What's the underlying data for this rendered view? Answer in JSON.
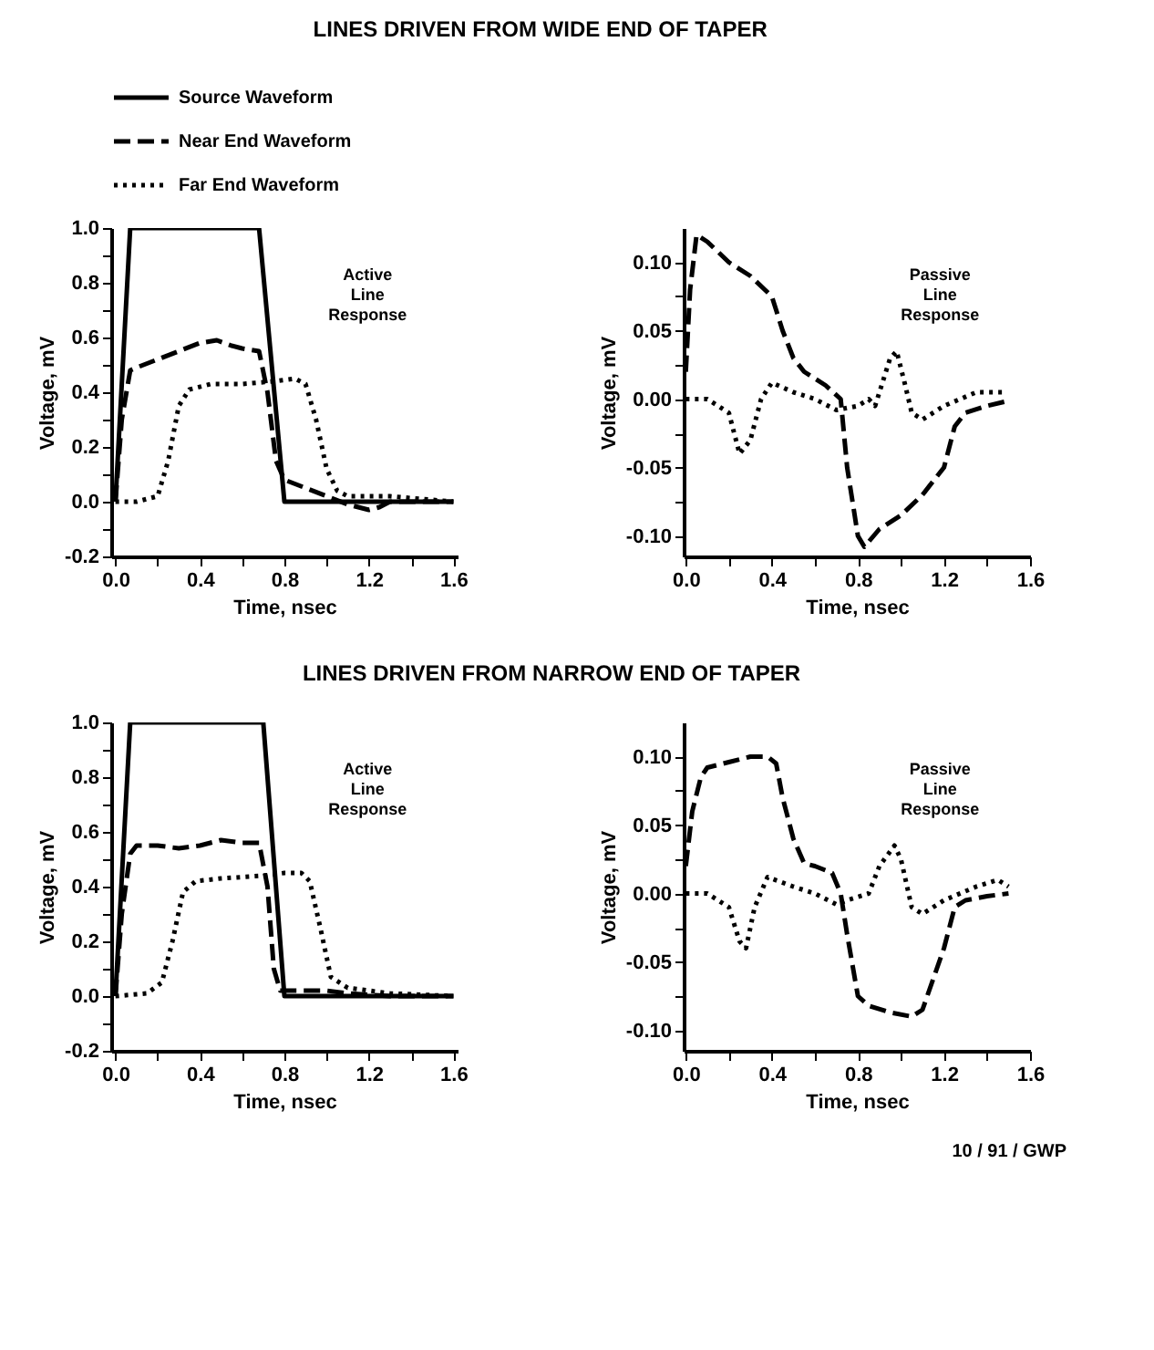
{
  "chart_data": [
    {
      "type": "line",
      "title": "LINES DRIVEN FROM WIDE END OF TAPER",
      "xlabel": "Time, nsec",
      "ylabel": "Voltage, mV",
      "legend": "top",
      "marker": "none",
      "grid": false,
      "xlim": [
        -0.02,
        1.62
      ],
      "ylim": [
        -0.2,
        1.0
      ],
      "xticks": [
        {
          "value": 0,
          "label": "0.0"
        },
        {
          "value": 0.2,
          "label": null
        },
        0.4,
        {
          "value": 0.6,
          "label": null
        },
        0.8,
        {
          "value": 1.0,
          "label": null
        },
        1.2,
        {
          "value": 1.4,
          "label": null
        },
        1.6
      ],
      "yticks": [
        -0.2,
        {
          "value": -0.1,
          "label": null
        },
        {
          "value": 0,
          "label": "0.0"
        },
        {
          "value": 0.1,
          "label": null
        },
        0.2,
        {
          "value": 0.3,
          "label": null
        },
        0.4,
        {
          "value": 0.5,
          "label": null
        },
        0.6,
        {
          "value": 0.7,
          "label": null
        },
        0.8,
        {
          "value": 0.9,
          "label": null
        },
        {
          "value": 1.0,
          "label": "1.0"
        }
      ],
      "annotations": [
        "Active\nLine\nResponse"
      ],
      "series": [
        {
          "name": "Source  Waveform",
          "color": "#000000",
          "line_style": "solid",
          "x": [
            0,
            0.07,
            0.68,
            0.8,
            1.6
          ],
          "values": [
            0,
            1,
            1,
            0,
            0
          ]
        },
        {
          "name": "Near End  Waveform",
          "color": "#000000",
          "line_style": "dashed",
          "x": [
            0,
            0.03,
            0.07,
            0.1,
            0.2,
            0.3,
            0.4,
            0.48,
            0.55,
            0.6,
            0.68,
            0.72,
            0.76,
            0.8,
            0.9,
            1.0,
            1.1,
            1.2,
            1.25,
            1.3,
            1.6
          ],
          "values": [
            0,
            0.3,
            0.48,
            0.49,
            0.52,
            0.55,
            0.58,
            0.59,
            0.57,
            0.56,
            0.55,
            0.4,
            0.15,
            0.08,
            0.05,
            0.02,
            -0.01,
            -0.03,
            -0.02,
            0,
            0
          ]
        },
        {
          "name": "Far End  Waveform",
          "color": "#000000",
          "line_style": "dotted",
          "x": [
            0,
            0.1,
            0.2,
            0.25,
            0.3,
            0.35,
            0.45,
            0.6,
            0.75,
            0.85,
            0.9,
            0.95,
            1.0,
            1.05,
            1.1,
            1.3,
            1.6
          ],
          "values": [
            0,
            0,
            0.02,
            0.15,
            0.35,
            0.41,
            0.43,
            0.43,
            0.44,
            0.45,
            0.43,
            0.3,
            0.12,
            0.04,
            0.02,
            0.02,
            0
          ]
        }
      ]
    },
    {
      "type": "line",
      "xlabel": "Time, nsec",
      "ylabel": "Voltage, mV",
      "marker": "none",
      "grid": false,
      "xlim": [
        -0.01,
        1.6
      ],
      "ylim": [
        -0.115,
        0.125
      ],
      "xticks": [
        {
          "value": 0,
          "label": "0.0"
        },
        {
          "value": 0.2,
          "label": null
        },
        0.4,
        {
          "value": 0.6,
          "label": null
        },
        0.8,
        {
          "value": 1.0,
          "label": null
        },
        1.2,
        {
          "value": 1.4,
          "label": null
        },
        1.6
      ],
      "yticks": [
        {
          "value": -0.1,
          "label": "-0.10"
        },
        {
          "value": -0.075,
          "label": null
        },
        -0.05,
        {
          "value": -0.025,
          "label": null
        },
        {
          "value": 0,
          "label": "0.00"
        },
        {
          "value": 0.025,
          "label": null
        },
        0.05,
        {
          "value": 0.075,
          "label": null
        },
        {
          "value": 0.1,
          "label": "0.10"
        }
      ],
      "annotations": [
        "Passive\nLine\nResponse"
      ],
      "series": [
        {
          "color": "#000000",
          "line_style": "dashed",
          "x": [
            0,
            0.02,
            0.05,
            0.1,
            0.2,
            0.3,
            0.4,
            0.45,
            0.5,
            0.55,
            0.6,
            0.65,
            0.72,
            0.75,
            0.8,
            0.83,
            0.9,
            1.0,
            1.1,
            1.2,
            1.25,
            1.3,
            1.4,
            1.48
          ],
          "values": [
            0.02,
            0.08,
            0.12,
            0.115,
            0.1,
            0.09,
            0.075,
            0.05,
            0.03,
            0.02,
            0.015,
            0.01,
            0,
            -0.05,
            -0.1,
            -0.108,
            -0.095,
            -0.085,
            -0.07,
            -0.05,
            -0.02,
            -0.01,
            -0.005,
            -0.002
          ]
        },
        {
          "color": "#000000",
          "line_style": "dotted",
          "x": [
            0,
            0.1,
            0.15,
            0.2,
            0.25,
            0.3,
            0.35,
            0.4,
            0.5,
            0.6,
            0.7,
            0.8,
            0.85,
            0.88,
            0.95,
            0.98,
            1.02,
            1.05,
            1.1,
            1.2,
            1.35,
            1.48
          ],
          "values": [
            0,
            0,
            -0.005,
            -0.01,
            -0.04,
            -0.03,
            0,
            0.012,
            0.005,
            0,
            -0.008,
            -0.005,
            0,
            -0.005,
            0.03,
            0.035,
            0.01,
            -0.01,
            -0.015,
            -0.005,
            0.005,
            0.005
          ]
        }
      ]
    },
    {
      "type": "line",
      "title": "LINES DRIVEN FROM NARROW END OF TAPER",
      "xlabel": "Time, nsec",
      "ylabel": "Voltage, mV",
      "marker": "none",
      "grid": false,
      "xlim": [
        -0.02,
        1.62
      ],
      "ylim": [
        -0.2,
        1.0
      ],
      "xticks": [
        {
          "value": 0,
          "label": "0.0"
        },
        {
          "value": 0.2,
          "label": null
        },
        0.4,
        {
          "value": 0.6,
          "label": null
        },
        0.8,
        {
          "value": 1.0,
          "label": null
        },
        1.2,
        {
          "value": 1.4,
          "label": null
        },
        1.6
      ],
      "yticks": [
        -0.2,
        {
          "value": -0.1,
          "label": null
        },
        {
          "value": 0,
          "label": "0.0"
        },
        {
          "value": 0.1,
          "label": null
        },
        0.2,
        {
          "value": 0.3,
          "label": null
        },
        0.4,
        {
          "value": 0.5,
          "label": null
        },
        0.6,
        {
          "value": 0.7,
          "label": null
        },
        0.8,
        {
          "value": 0.9,
          "label": null
        },
        {
          "value": 1.0,
          "label": "1.0"
        }
      ],
      "annotations": [
        "Active\nLine\nResponse"
      ],
      "series": [
        {
          "color": "#000000",
          "line_style": "solid",
          "x": [
            0,
            0.07,
            0.7,
            0.8,
            1.6
          ],
          "values": [
            0,
            1,
            1,
            0,
            0
          ]
        },
        {
          "color": "#000000",
          "line_style": "dashed",
          "x": [
            0,
            0.03,
            0.07,
            0.1,
            0.2,
            0.3,
            0.4,
            0.5,
            0.6,
            0.68,
            0.72,
            0.75,
            0.78,
            0.9,
            1.0,
            1.1,
            1.3,
            1.6
          ],
          "values": [
            0,
            0.3,
            0.52,
            0.55,
            0.55,
            0.54,
            0.55,
            0.57,
            0.56,
            0.56,
            0.4,
            0.1,
            0.02,
            0.02,
            0.02,
            0.01,
            0,
            0
          ]
        },
        {
          "color": "#000000",
          "line_style": "dotted",
          "x": [
            0,
            0.15,
            0.22,
            0.27,
            0.32,
            0.38,
            0.5,
            0.7,
            0.8,
            0.88,
            0.92,
            0.97,
            1.02,
            1.1,
            1.3,
            1.6
          ],
          "values": [
            0,
            0.01,
            0.05,
            0.2,
            0.38,
            0.42,
            0.43,
            0.44,
            0.45,
            0.45,
            0.42,
            0.25,
            0.07,
            0.03,
            0.01,
            0
          ]
        }
      ]
    },
    {
      "type": "line",
      "xlabel": "Time, nsec",
      "ylabel": "Voltage, mV",
      "marker": "none",
      "grid": false,
      "xlim": [
        -0.01,
        1.6
      ],
      "ylim": [
        -0.115,
        0.125
      ],
      "xticks": [
        {
          "value": 0,
          "label": "0.0"
        },
        {
          "value": 0.2,
          "label": null
        },
        0.4,
        {
          "value": 0.6,
          "label": null
        },
        0.8,
        {
          "value": 1.0,
          "label": null
        },
        1.2,
        {
          "value": 1.4,
          "label": null
        },
        1.6
      ],
      "yticks": [
        {
          "value": -0.1,
          "label": "-0.10"
        },
        {
          "value": -0.075,
          "label": null
        },
        -0.05,
        {
          "value": -0.025,
          "label": null
        },
        {
          "value": 0,
          "label": "0.00"
        },
        {
          "value": 0.025,
          "label": null
        },
        0.05,
        {
          "value": 0.075,
          "label": null
        },
        {
          "value": 0.1,
          "label": "0.10"
        }
      ],
      "annotations": [
        "Passive\nLine\nResponse",
        "10 / 91 / GWP"
      ],
      "series": [
        {
          "color": "#000000",
          "line_style": "dashed",
          "x": [
            0,
            0.03,
            0.07,
            0.1,
            0.2,
            0.3,
            0.38,
            0.42,
            0.45,
            0.5,
            0.55,
            0.6,
            0.68,
            0.72,
            0.75,
            0.8,
            0.85,
            0.95,
            1.05,
            1.1,
            1.2,
            1.25,
            1.3,
            1.4,
            1.5
          ],
          "values": [
            0.02,
            0.06,
            0.085,
            0.092,
            0.096,
            0.1,
            0.1,
            0.095,
            0.07,
            0.04,
            0.022,
            0.02,
            0.015,
            0,
            -0.03,
            -0.075,
            -0.082,
            -0.087,
            -0.09,
            -0.085,
            -0.04,
            -0.01,
            -0.005,
            -0.002,
            0
          ]
        },
        {
          "color": "#000000",
          "line_style": "dotted",
          "x": [
            0,
            0.1,
            0.15,
            0.2,
            0.25,
            0.28,
            0.32,
            0.38,
            0.5,
            0.6,
            0.7,
            0.75,
            0.85,
            0.9,
            0.97,
            1.0,
            1.05,
            1.1,
            1.2,
            1.35,
            1.45,
            1.5
          ],
          "values": [
            0,
            0,
            -0.005,
            -0.01,
            -0.035,
            -0.04,
            -0.01,
            0.012,
            0.005,
            0,
            -0.008,
            -0.005,
            0,
            0.02,
            0.035,
            0.025,
            -0.01,
            -0.015,
            -0.005,
            0.005,
            0.01,
            0.005
          ]
        }
      ]
    }
  ]
}
